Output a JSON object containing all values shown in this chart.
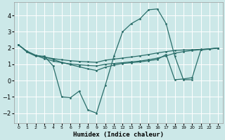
{
  "xlabel": "Humidex (Indice chaleur)",
  "bg_color": "#cce8e8",
  "grid_color": "#ffffff",
  "line_color": "#2a6e6a",
  "xlim": [
    -0.5,
    23.5
  ],
  "ylim": [
    -2.6,
    4.8
  ],
  "xticks": [
    0,
    1,
    2,
    3,
    4,
    5,
    6,
    7,
    8,
    9,
    10,
    11,
    12,
    13,
    14,
    15,
    16,
    17,
    18,
    19,
    20,
    21,
    22,
    23
  ],
  "yticks": [
    -2,
    -1,
    0,
    1,
    2,
    3,
    4
  ],
  "line1_x": [
    0,
    1,
    2,
    3,
    4,
    5,
    6,
    7,
    8,
    9,
    10,
    11,
    12,
    13,
    14,
    15,
    16,
    17,
    18,
    19,
    20
  ],
  "line1_y": [
    2.2,
    1.75,
    1.5,
    1.5,
    0.9,
    -1.0,
    -1.05,
    -0.65,
    -1.8,
    -2.0,
    -0.3,
    1.5,
    3.0,
    3.5,
    3.8,
    4.35,
    4.4,
    3.5,
    1.5,
    0.05,
    0.05
  ],
  "line2_x": [
    0,
    1,
    2,
    3,
    4,
    5,
    6,
    7,
    8,
    9,
    10,
    11,
    12,
    13,
    14,
    15,
    16,
    17,
    18,
    19,
    20,
    21,
    22,
    23
  ],
  "line2_y": [
    2.2,
    1.8,
    1.55,
    1.45,
    1.35,
    1.28,
    1.22,
    1.18,
    1.15,
    1.12,
    1.25,
    1.32,
    1.38,
    1.45,
    1.52,
    1.6,
    1.7,
    1.78,
    1.85,
    1.88,
    1.9,
    1.92,
    1.95,
    2.0
  ],
  "line3_x": [
    0,
    1,
    2,
    3,
    4,
    5,
    6,
    7,
    8,
    9,
    10,
    11,
    12,
    13,
    14,
    15,
    16,
    17,
    18,
    19,
    20,
    21,
    22,
    23
  ],
  "line3_y": [
    2.2,
    1.8,
    1.55,
    1.35,
    1.2,
    1.1,
    1.02,
    0.97,
    0.93,
    0.9,
    1.0,
    1.05,
    1.1,
    1.15,
    1.2,
    1.28,
    1.38,
    1.52,
    1.68,
    1.78,
    1.85,
    1.9,
    1.95,
    2.0
  ],
  "line4_x": [
    2,
    3,
    4,
    5,
    6,
    7,
    8,
    9,
    10,
    11,
    12,
    13,
    14,
    15,
    16,
    17,
    18,
    19,
    20,
    21,
    22,
    23
  ],
  "line4_y": [
    1.55,
    1.45,
    1.3,
    1.12,
    0.98,
    0.85,
    0.72,
    0.62,
    0.82,
    0.95,
    1.05,
    1.1,
    1.15,
    1.22,
    1.3,
    1.6,
    0.05,
    0.1,
    0.18,
    1.88,
    1.93,
    2.0
  ]
}
